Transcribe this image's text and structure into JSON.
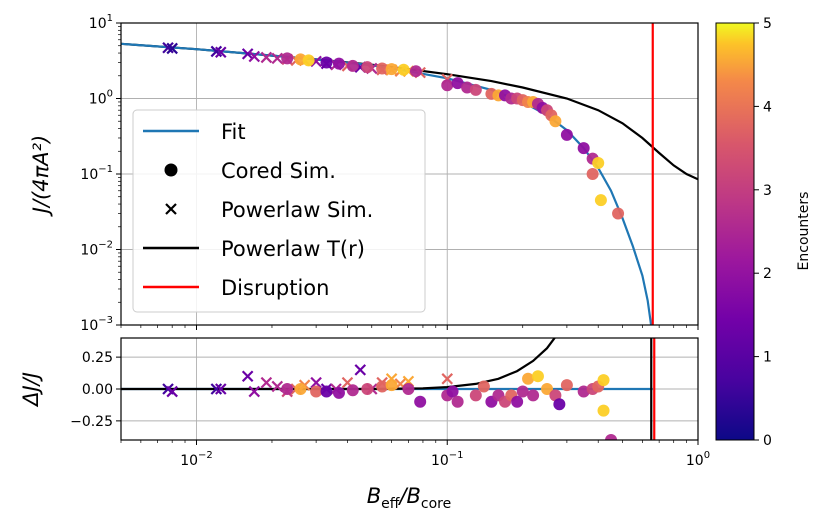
{
  "chart_data": {
    "type": "scatter",
    "x_scale": "log",
    "xlim": [
      0.005,
      1.0
    ],
    "xlabel_main": "B",
    "xlabel_sub1": "eff",
    "xlabel_mid": "/B",
    "xlabel_sub2": "core",
    "top_panel": {
      "y_scale": "log",
      "ylim": [
        0.001,
        10
      ],
      "ylabel": "J/(4πA²)",
      "yticks": [
        {
          "value": 10,
          "base": "10",
          "exp": "1"
        },
        {
          "value": 1,
          "base": "10",
          "exp": "0"
        },
        {
          "value": 0.1,
          "base": "10",
          "exp": "−1"
        },
        {
          "value": 0.01,
          "base": "10",
          "exp": "−2"
        },
        {
          "value": 0.001,
          "base": "10",
          "exp": "−3"
        }
      ],
      "fit_curve": [
        [
          0.005,
          5.3
        ],
        [
          0.01,
          4.5
        ],
        [
          0.02,
          3.7
        ],
        [
          0.03,
          3.3
        ],
        [
          0.05,
          2.75
        ],
        [
          0.07,
          2.3
        ],
        [
          0.1,
          1.85
        ],
        [
          0.15,
          1.3
        ],
        [
          0.2,
          0.9
        ],
        [
          0.25,
          0.6
        ],
        [
          0.3,
          0.38
        ],
        [
          0.35,
          0.22
        ],
        [
          0.4,
          0.12
        ],
        [
          0.45,
          0.06
        ],
        [
          0.5,
          0.026
        ],
        [
          0.55,
          0.011
        ],
        [
          0.6,
          0.0045
        ],
        [
          0.63,
          0.0021
        ],
        [
          0.65,
          0.001
        ]
      ],
      "powerlaw_curve": [
        [
          0.005,
          5.3
        ],
        [
          0.01,
          4.5
        ],
        [
          0.02,
          3.7
        ],
        [
          0.03,
          3.3
        ],
        [
          0.05,
          2.8
        ],
        [
          0.07,
          2.45
        ],
        [
          0.1,
          2.1
        ],
        [
          0.15,
          1.7
        ],
        [
          0.2,
          1.4
        ],
        [
          0.3,
          1.0
        ],
        [
          0.4,
          0.7
        ],
        [
          0.5,
          0.47
        ],
        [
          0.6,
          0.3
        ],
        [
          0.7,
          0.19
        ],
        [
          0.8,
          0.13
        ],
        [
          0.9,
          0.1
        ],
        [
          1.0,
          0.085
        ]
      ],
      "disruption_x": 0.66,
      "powerlaw_points": [
        {
          "x": 0.0077,
          "y": 4.7,
          "c": 0.5
        },
        {
          "x": 0.008,
          "y": 4.6,
          "c": 0.3
        },
        {
          "x": 0.012,
          "y": 4.2,
          "c": 0.5
        },
        {
          "x": 0.0125,
          "y": 4.1,
          "c": 1
        },
        {
          "x": 0.016,
          "y": 3.9,
          "c": 1
        },
        {
          "x": 0.017,
          "y": 3.6,
          "c": 1.5
        },
        {
          "x": 0.019,
          "y": 3.5,
          "c": 2
        },
        {
          "x": 0.021,
          "y": 3.4,
          "c": 2
        },
        {
          "x": 0.023,
          "y": 3.3,
          "c": 2.5
        },
        {
          "x": 0.025,
          "y": 3.2,
          "c": 3
        },
        {
          "x": 0.027,
          "y": 3.2,
          "c": 3.5
        },
        {
          "x": 0.03,
          "y": 3.1,
          "c": 1.5
        },
        {
          "x": 0.033,
          "y": 2.9,
          "c": 1
        },
        {
          "x": 0.036,
          "y": 2.8,
          "c": 2
        },
        {
          "x": 0.04,
          "y": 2.7,
          "c": 3
        },
        {
          "x": 0.045,
          "y": 2.6,
          "c": 1
        },
        {
          "x": 0.05,
          "y": 2.5,
          "c": 2
        },
        {
          "x": 0.055,
          "y": 2.4,
          "c": 3
        },
        {
          "x": 0.06,
          "y": 2.4,
          "c": 4
        },
        {
          "x": 0.065,
          "y": 2.3,
          "c": 3.5
        },
        {
          "x": 0.07,
          "y": 2.3,
          "c": 4
        },
        {
          "x": 0.078,
          "y": 2.2,
          "c": 3
        },
        {
          "x": 0.1,
          "y": 1.8,
          "c": 3
        }
      ],
      "cored_points": [
        {
          "x": 0.023,
          "y": 3.4,
          "c": 2
        },
        {
          "x": 0.026,
          "y": 3.3,
          "c": 4
        },
        {
          "x": 0.028,
          "y": 3.2,
          "c": 4.5
        },
        {
          "x": 0.033,
          "y": 3.0,
          "c": 1
        },
        {
          "x": 0.037,
          "y": 2.9,
          "c": 1.5
        },
        {
          "x": 0.042,
          "y": 2.7,
          "c": 2
        },
        {
          "x": 0.048,
          "y": 2.6,
          "c": 2.5
        },
        {
          "x": 0.055,
          "y": 2.5,
          "c": 3
        },
        {
          "x": 0.06,
          "y": 2.45,
          "c": 4
        },
        {
          "x": 0.067,
          "y": 2.4,
          "c": 4.5
        },
        {
          "x": 0.075,
          "y": 2.3,
          "c": 2
        },
        {
          "x": 0.1,
          "y": 1.5,
          "c": 2
        },
        {
          "x": 0.11,
          "y": 1.6,
          "c": 1.5
        },
        {
          "x": 0.12,
          "y": 1.4,
          "c": 2
        },
        {
          "x": 0.13,
          "y": 1.3,
          "c": 2.5
        },
        {
          "x": 0.15,
          "y": 1.15,
          "c": 3
        },
        {
          "x": 0.16,
          "y": 1.1,
          "c": 4
        },
        {
          "x": 0.17,
          "y": 1.1,
          "c": 1.5
        },
        {
          "x": 0.18,
          "y": 1.0,
          "c": 2
        },
        {
          "x": 0.19,
          "y": 1.0,
          "c": 2.5
        },
        {
          "x": 0.2,
          "y": 0.95,
          "c": 3
        },
        {
          "x": 0.21,
          "y": 0.9,
          "c": 3.5
        },
        {
          "x": 0.22,
          "y": 0.9,
          "c": 4
        },
        {
          "x": 0.23,
          "y": 0.85,
          "c": 2
        },
        {
          "x": 0.24,
          "y": 0.75,
          "c": 1.5
        },
        {
          "x": 0.25,
          "y": 0.7,
          "c": 2.5
        },
        {
          "x": 0.26,
          "y": 0.6,
          "c": 3
        },
        {
          "x": 0.27,
          "y": 0.5,
          "c": 4
        },
        {
          "x": 0.3,
          "y": 0.33,
          "c": 1.5
        },
        {
          "x": 0.35,
          "y": 0.22,
          "c": 1.5
        },
        {
          "x": 0.38,
          "y": 0.16,
          "c": 2
        },
        {
          "x": 0.4,
          "y": 0.14,
          "c": 4.5
        },
        {
          "x": 0.38,
          "y": 0.1,
          "c": 3
        },
        {
          "x": 0.41,
          "y": 0.045,
          "c": 4.5
        },
        {
          "x": 0.48,
          "y": 0.03,
          "c": 3
        }
      ]
    },
    "bottom_panel": {
      "y_scale": "linear",
      "ylim": [
        -0.4,
        0.4
      ],
      "ylabel": "ΔJ/J",
      "yticks": [
        {
          "value": 0.25,
          "label": "0.25"
        },
        {
          "value": 0.0,
          "label": "0.00"
        },
        {
          "value": -0.25,
          "label": "−0.25"
        }
      ],
      "fit_residual": 0.0,
      "powerlaw_residual_curve": [
        [
          0.005,
          0
        ],
        [
          0.05,
          0.0
        ],
        [
          0.08,
          0.005
        ],
        [
          0.1,
          0.015
        ],
        [
          0.13,
          0.04
        ],
        [
          0.16,
          0.08
        ],
        [
          0.19,
          0.14
        ],
        [
          0.22,
          0.22
        ],
        [
          0.25,
          0.32
        ],
        [
          0.28,
          0.45
        ]
      ],
      "disruption_x": 0.66,
      "powerlaw_points": [
        {
          "x": 0.0077,
          "y": 0.0,
          "c": 0.5
        },
        {
          "x": 0.008,
          "y": -0.02,
          "c": 1
        },
        {
          "x": 0.012,
          "y": 0.0,
          "c": 0.5
        },
        {
          "x": 0.0125,
          "y": 0.0,
          "c": 1
        },
        {
          "x": 0.016,
          "y": 0.1,
          "c": 1
        },
        {
          "x": 0.017,
          "y": -0.02,
          "c": 1.5
        },
        {
          "x": 0.019,
          "y": 0.05,
          "c": 2
        },
        {
          "x": 0.021,
          "y": 0.02,
          "c": 2
        },
        {
          "x": 0.023,
          "y": -0.02,
          "c": 2.5
        },
        {
          "x": 0.025,
          "y": 0.0,
          "c": 3
        },
        {
          "x": 0.027,
          "y": 0.03,
          "c": 3.5
        },
        {
          "x": 0.03,
          "y": 0.05,
          "c": 1.5
        },
        {
          "x": 0.033,
          "y": 0.0,
          "c": 1
        },
        {
          "x": 0.036,
          "y": 0.0,
          "c": 2
        },
        {
          "x": 0.04,
          "y": 0.05,
          "c": 3
        },
        {
          "x": 0.045,
          "y": 0.15,
          "c": 1
        },
        {
          "x": 0.05,
          "y": 0.0,
          "c": 2
        },
        {
          "x": 0.055,
          "y": 0.05,
          "c": 3
        },
        {
          "x": 0.06,
          "y": 0.08,
          "c": 4
        },
        {
          "x": 0.065,
          "y": 0.04,
          "c": 3.5
        },
        {
          "x": 0.07,
          "y": 0.06,
          "c": 4
        },
        {
          "x": 0.1,
          "y": 0.08,
          "c": 3
        }
      ],
      "cored_points": [
        {
          "x": 0.023,
          "y": 0.0,
          "c": 2
        },
        {
          "x": 0.026,
          "y": 0.0,
          "c": 4
        },
        {
          "x": 0.03,
          "y": -0.02,
          "c": 3
        },
        {
          "x": 0.033,
          "y": -0.02,
          "c": 1
        },
        {
          "x": 0.037,
          "y": -0.03,
          "c": 1.5
        },
        {
          "x": 0.042,
          "y": -0.01,
          "c": 2
        },
        {
          "x": 0.048,
          "y": 0.0,
          "c": 2.5
        },
        {
          "x": 0.055,
          "y": 0.02,
          "c": 3
        },
        {
          "x": 0.06,
          "y": 0.03,
          "c": 4
        },
        {
          "x": 0.07,
          "y": 0.0,
          "c": 2
        },
        {
          "x": 0.078,
          "y": -0.1,
          "c": 1.5
        },
        {
          "x": 0.1,
          "y": -0.05,
          "c": 2
        },
        {
          "x": 0.105,
          "y": -0.02,
          "c": 1.5
        },
        {
          "x": 0.11,
          "y": -0.1,
          "c": 2
        },
        {
          "x": 0.13,
          "y": -0.05,
          "c": 2.5
        },
        {
          "x": 0.14,
          "y": 0.02,
          "c": 3
        },
        {
          "x": 0.15,
          "y": -0.1,
          "c": 1.5
        },
        {
          "x": 0.16,
          "y": -0.05,
          "c": 2
        },
        {
          "x": 0.17,
          "y": -0.1,
          "c": 2.5
        },
        {
          "x": 0.18,
          "y": -0.05,
          "c": 3
        },
        {
          "x": 0.19,
          "y": -0.1,
          "c": 1.5
        },
        {
          "x": 0.2,
          "y": -0.02,
          "c": 2
        },
        {
          "x": 0.21,
          "y": 0.08,
          "c": 4
        },
        {
          "x": 0.22,
          "y": -0.05,
          "c": 2
        },
        {
          "x": 0.23,
          "y": 0.1,
          "c": 4.5
        },
        {
          "x": 0.25,
          "y": 0.0,
          "c": 4
        },
        {
          "x": 0.27,
          "y": -0.05,
          "c": 2.5
        },
        {
          "x": 0.28,
          "y": -0.12,
          "c": 1
        },
        {
          "x": 0.3,
          "y": 0.03,
          "c": 3
        },
        {
          "x": 0.35,
          "y": -0.02,
          "c": 2
        },
        {
          "x": 0.38,
          "y": 0.0,
          "c": 2.5
        },
        {
          "x": 0.4,
          "y": 0.02,
          "c": 3
        },
        {
          "x": 0.42,
          "y": 0.07,
          "c": 4.5
        },
        {
          "x": 0.42,
          "y": -0.17,
          "c": 4.5
        },
        {
          "x": 0.45,
          "y": -0.4,
          "c": 2
        }
      ]
    },
    "xticks": [
      {
        "value": 0.01,
        "base": "10",
        "exp": "−2"
      },
      {
        "value": 0.1,
        "base": "10",
        "exp": "−1"
      },
      {
        "value": 1.0,
        "base": "10",
        "exp": "0"
      }
    ],
    "legend": {
      "position": "center-left",
      "entries": [
        {
          "kind": "line",
          "color": "#1f77b4",
          "label": "Fit"
        },
        {
          "kind": "circle",
          "color": "#000000",
          "label": "Cored Sim."
        },
        {
          "kind": "cross",
          "color": "#000000",
          "label": "Powerlaw Sim."
        },
        {
          "kind": "line",
          "color": "#000000",
          "label": "Powerlaw T(r)"
        },
        {
          "kind": "line",
          "color": "#ff0000",
          "label": "Disruption"
        }
      ]
    },
    "colorbar": {
      "label": "Encounters",
      "min": 0,
      "max": 5,
      "ticks": [
        "0",
        "1",
        "2",
        "3",
        "4",
        "5"
      ],
      "colormap": "plasma"
    },
    "colors": {
      "fit": "#1f77b4",
      "powerlaw": "#000000",
      "disruption": "#ff0000",
      "grid": "#b0b0b0"
    }
  }
}
